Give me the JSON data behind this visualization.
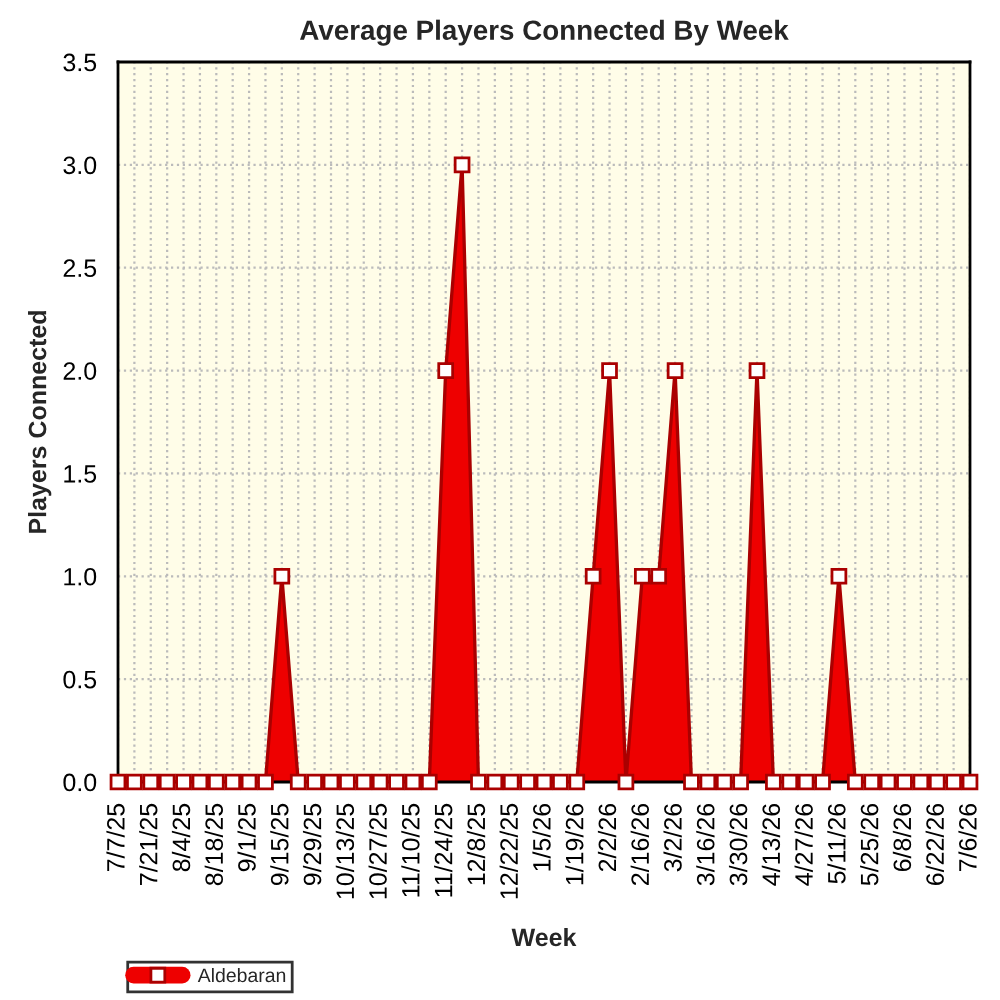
{
  "chart_data": {
    "type": "area",
    "title": "Average Players Connected By Week",
    "xlabel": "Week",
    "ylabel": "Players Connected",
    "categories": [
      "7/7/25",
      null,
      "7/21/25",
      null,
      "8/4/25",
      null,
      "8/18/25",
      null,
      "9/1/25",
      null,
      "9/15/25",
      null,
      "9/29/25",
      null,
      "10/13/25",
      null,
      "10/27/25",
      null,
      "11/10/25",
      null,
      "11/24/25",
      null,
      "12/8/25",
      null,
      "12/22/25",
      null,
      "1/5/26",
      null,
      "1/19/26",
      null,
      "2/2/26",
      null,
      "2/16/26",
      null,
      "3/2/26",
      null,
      "3/16/26",
      null,
      "3/30/26",
      null,
      "4/13/26",
      null,
      "4/27/26",
      null,
      "5/11/26",
      null,
      "5/25/26",
      null,
      "6/8/26",
      null,
      "6/22/26",
      null,
      "7/6/26"
    ],
    "series": [
      {
        "name": "Aldebaran",
        "color": "#ee0000",
        "values": [
          0,
          0,
          0,
          0,
          0,
          0,
          0,
          0,
          0,
          0,
          1,
          0,
          0,
          0,
          0,
          0,
          0,
          0,
          0,
          0,
          2,
          3,
          0,
          0,
          0,
          0,
          0,
          0,
          0,
          1,
          2,
          0,
          1,
          1,
          2,
          0,
          0,
          0,
          0,
          2,
          0,
          0,
          0,
          0,
          1,
          0,
          0,
          0,
          0,
          0,
          0,
          0,
          0
        ]
      }
    ],
    "ylim": [
      0,
      3.5
    ],
    "yticks": [
      {
        "value": 0,
        "label": "0.0"
      },
      {
        "value": 0.5,
        "label": "0.5"
      },
      {
        "value": 1,
        "label": "1.0"
      },
      {
        "value": 1.5,
        "label": "1.5"
      },
      {
        "value": 2,
        "label": "2.0"
      },
      {
        "value": 2.5,
        "label": "2.5"
      },
      {
        "value": 3,
        "label": "3.0"
      },
      {
        "value": 3.5,
        "label": "3.5"
      }
    ],
    "grid": true,
    "legend": "bottom left",
    "marker": "square",
    "line_style": "solid"
  }
}
